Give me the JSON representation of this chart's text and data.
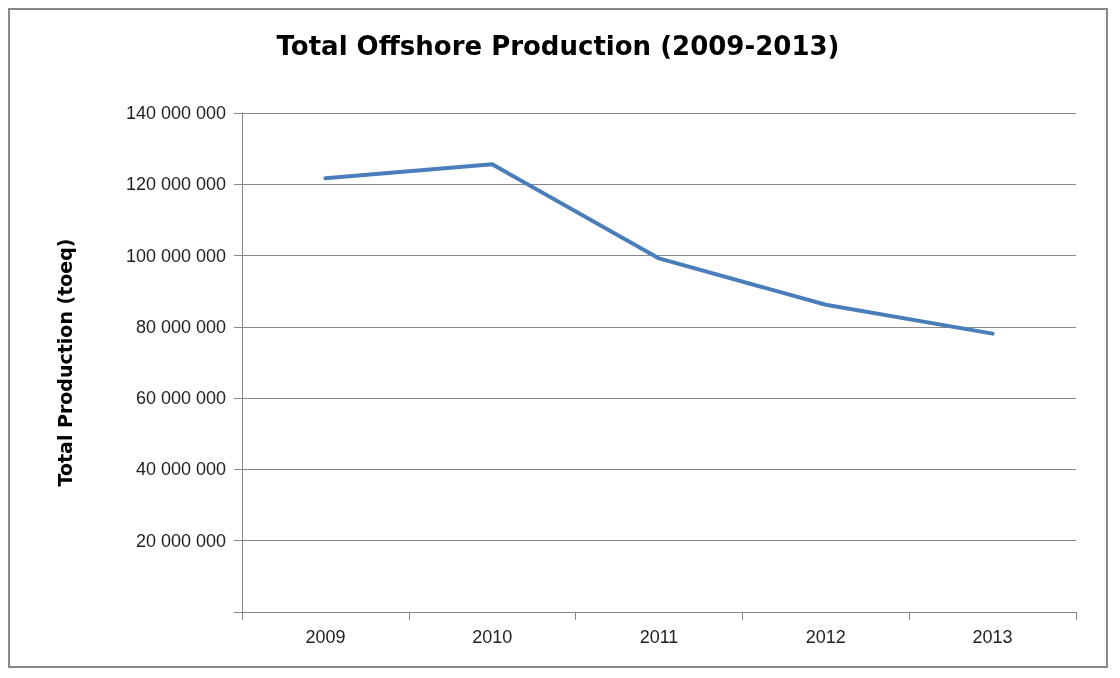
{
  "chart_data": {
    "type": "line",
    "title": "Total Offshore Production (2009-2013)",
    "ylabel": "Total Production (toeq)",
    "categories": [
      "2009",
      "2010",
      "2011",
      "2012",
      "2013"
    ],
    "series": [
      {
        "color": "#4a7ebb",
        "values": [
          121700000,
          125600000,
          99200000,
          86200000,
          78100000
        ]
      }
    ],
    "ylim": [
      0,
      140000000
    ],
    "yticks": [
      {
        "value": 0,
        "label": null
      },
      {
        "value": 20000000,
        "label": "20 000 000"
      },
      {
        "value": 40000000,
        "label": "40 000 000"
      },
      {
        "value": 60000000,
        "label": "60 000 000"
      },
      {
        "value": 80000000,
        "label": "80 000 000"
      },
      {
        "value": 100000000,
        "label": "100 000 000"
      },
      {
        "value": 120000000,
        "label": "120 000 000"
      },
      {
        "value": 140000000,
        "label": "140 000 000"
      }
    ],
    "grid": "y",
    "marker": "none",
    "line_style": "solid"
  }
}
